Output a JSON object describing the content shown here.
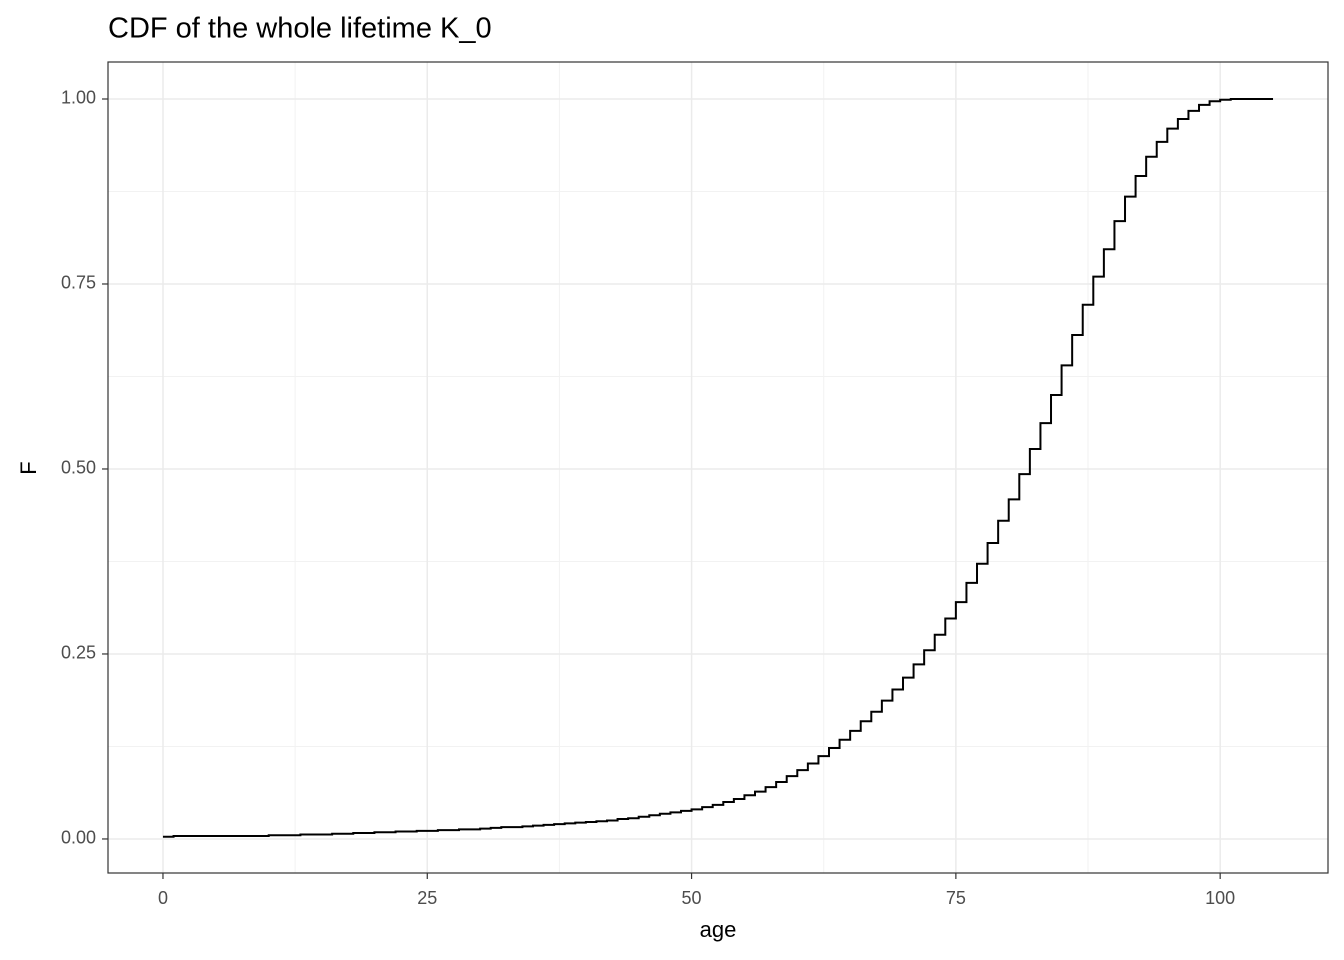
{
  "chart_data": {
    "type": "step",
    "title": "CDF of the whole lifetime K_0",
    "x_label": "age",
    "y_label": "F",
    "x": [
      0,
      1,
      2,
      3,
      4,
      5,
      6,
      7,
      8,
      9,
      10,
      11,
      12,
      13,
      14,
      15,
      16,
      17,
      18,
      19,
      20,
      21,
      22,
      23,
      24,
      25,
      26,
      27,
      28,
      29,
      30,
      31,
      32,
      33,
      34,
      35,
      36,
      37,
      38,
      39,
      40,
      41,
      42,
      43,
      44,
      45,
      46,
      47,
      48,
      49,
      50,
      51,
      52,
      53,
      54,
      55,
      56,
      57,
      58,
      59,
      60,
      61,
      62,
      63,
      64,
      65,
      66,
      67,
      68,
      69,
      70,
      71,
      72,
      73,
      74,
      75,
      76,
      77,
      78,
      79,
      80,
      81,
      82,
      83,
      84,
      85,
      86,
      87,
      88,
      89,
      90,
      91,
      92,
      93,
      94,
      95,
      96,
      97,
      98,
      99,
      100,
      101,
      102,
      103,
      104,
      105
    ],
    "values": [
      0.003,
      0.004,
      0.004,
      0.004,
      0.004,
      0.004,
      0.004,
      0.004,
      0.004,
      0.004,
      0.005,
      0.005,
      0.005,
      0.006,
      0.006,
      0.006,
      0.007,
      0.007,
      0.008,
      0.008,
      0.009,
      0.009,
      0.01,
      0.01,
      0.011,
      0.011,
      0.012,
      0.012,
      0.013,
      0.013,
      0.014,
      0.015,
      0.016,
      0.016,
      0.017,
      0.018,
      0.019,
      0.02,
      0.021,
      0.022,
      0.023,
      0.024,
      0.025,
      0.027,
      0.028,
      0.03,
      0.032,
      0.034,
      0.036,
      0.038,
      0.04,
      0.043,
      0.046,
      0.05,
      0.054,
      0.059,
      0.064,
      0.07,
      0.077,
      0.085,
      0.093,
      0.102,
      0.112,
      0.123,
      0.134,
      0.146,
      0.159,
      0.172,
      0.187,
      0.202,
      0.218,
      0.236,
      0.255,
      0.276,
      0.298,
      0.32,
      0.346,
      0.372,
      0.4,
      0.43,
      0.459,
      0.493,
      0.527,
      0.562,
      0.6,
      0.64,
      0.681,
      0.722,
      0.76,
      0.797,
      0.835,
      0.868,
      0.896,
      0.922,
      0.942,
      0.96,
      0.973,
      0.984,
      0.992,
      0.997,
      0.999,
      1.0,
      1.0,
      1.0,
      1.0,
      1.0
    ],
    "color": "#000000",
    "xlim": [
      -5.2,
      110.2
    ],
    "xticks": [
      0,
      25,
      50,
      75,
      100
    ],
    "ylim": [
      -0.046,
      1.05
    ],
    "yticks": [
      {
        "value": 0,
        "label": "0.00"
      },
      {
        "value": 0.25,
        "label": "0.25"
      },
      {
        "value": 0.5,
        "label": "0.50"
      },
      {
        "value": 0.75,
        "label": "0.75"
      },
      {
        "value": 1,
        "label": "1.00"
      }
    ],
    "grid": true
  }
}
